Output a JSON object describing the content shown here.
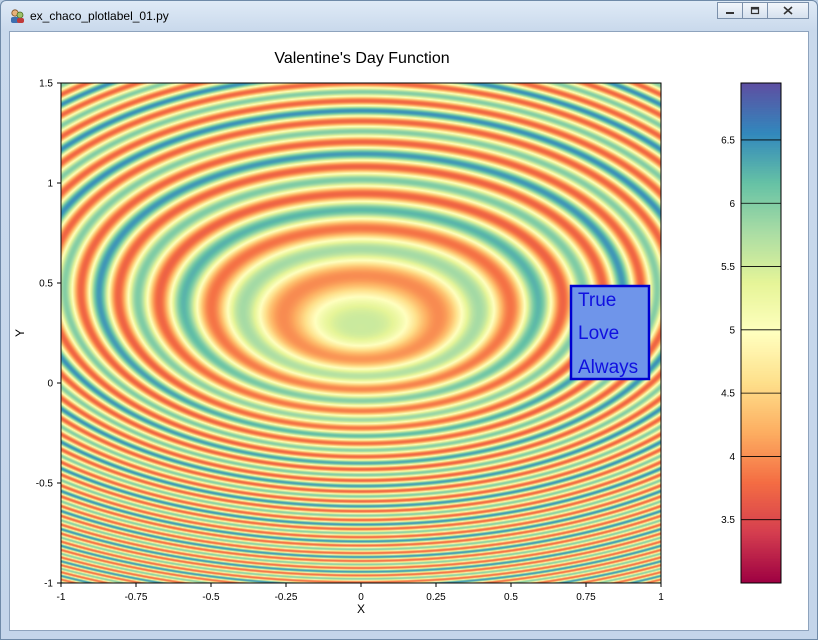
{
  "window": {
    "title": "ex_chaco_plotlabel_01.py",
    "icons": {
      "app": "python-app-icon",
      "minimize": "minimize-icon",
      "maximize": "maximize-icon",
      "close": "close-icon"
    }
  },
  "chart_data": {
    "type": "heatmap",
    "title": "Valentine's Day Function",
    "xlabel": "X",
    "ylabel": "Y",
    "xlim": [
      -1,
      1
    ],
    "ylim": [
      -1,
      1.5
    ],
    "x_ticks": [
      "-1",
      "-0.75",
      "-0.5",
      "-0.25",
      "0",
      "0.25",
      "0.5",
      "0.75",
      "1"
    ],
    "y_ticks": [
      "-1",
      "-0.5",
      "0",
      "0.5",
      "1",
      "1.5"
    ],
    "colorbar": {
      "range": [
        3.0,
        6.95
      ],
      "ticks": [
        "3.5",
        "4",
        "4.5",
        "5",
        "5.5",
        "6",
        "6.5"
      ],
      "colormap": "Spectral"
    },
    "annotation": {
      "lines": [
        "True",
        "Love",
        "Always"
      ],
      "anchor_data": [
        0.7,
        0.0
      ],
      "text_color": "#1010e0",
      "bg_color": "#6f95ea",
      "border_color": "#0000d0"
    }
  }
}
